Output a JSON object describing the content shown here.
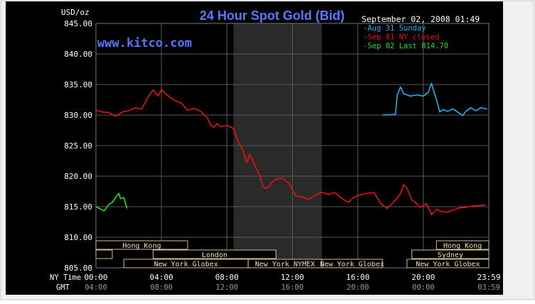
{
  "chart_data": {
    "type": "line",
    "title": "24 Hour Spot Gold (Bid)",
    "watermark": "www.kitco.com",
    "timestamp": "September 02, 2008 01:49",
    "ylabel": "USD/oz",
    "ylim": [
      805,
      845
    ],
    "y_ticks": [
      "805.00",
      "810.00",
      "815.00",
      "820.00",
      "825.00",
      "830.00",
      "835.00",
      "840.00",
      "845.00"
    ],
    "x_row_labels": {
      "ny": "NY Time",
      "gmt": "GMT"
    },
    "x_ticks_ny": [
      "00:00",
      "04:00",
      "08:00",
      "12:00",
      "16:00",
      "20:00",
      "23:59"
    ],
    "x_ticks_gmt": [
      "04:00",
      "08:00",
      "12:00",
      "16:00",
      "20:00",
      "00:00",
      "03:59"
    ],
    "x_unit": "hours (NY time)",
    "xlim": [
      0,
      24
    ],
    "grid": true,
    "legend_position": "top-right",
    "legend": [
      {
        "label": "Aug 31 Sunday",
        "color": "#19b3f0"
      },
      {
        "label": "Sep 01 NY closed",
        "color": "#ee1010"
      },
      {
        "label": "Sep 02 Last 814.70",
        "color": "#22dd22"
      }
    ],
    "shaded_session_hours": [
      8.4,
      13.8
    ],
    "sessions": [
      {
        "label": "Hong Kong",
        "start": 0.0,
        "end": 5.6,
        "row": 0
      },
      {
        "label": "Hong Kong",
        "start": 20.8,
        "end": 24.0,
        "row": 0
      },
      {
        "label": "",
        "start": 0.0,
        "end": 1.0,
        "row": 1
      },
      {
        "label": "London",
        "start": 3.5,
        "end": 11.0,
        "row": 1
      },
      {
        "label": "Sydney",
        "start": 19.3,
        "end": 24.0,
        "row": 1
      },
      {
        "label": "New York Globex",
        "start": 1.7,
        "end": 9.3,
        "row": 2
      },
      {
        "label": "New York NYMEX",
        "start": 9.3,
        "end": 13.8,
        "row": 2
      },
      {
        "label": "New York Globex",
        "start": 13.8,
        "end": 17.5,
        "row": 2
      },
      {
        "label": "New York Globex",
        "start": 19.0,
        "end": 24.0,
        "row": 2
      }
    ],
    "series": [
      {
        "name": "Aug 31 Sunday",
        "color": "#19b3f0",
        "x": [
          17.5,
          18.3,
          18.4,
          18.6,
          18.8,
          19.2,
          19.6,
          20.0,
          20.3,
          20.5,
          20.6,
          20.7,
          20.9,
          21.0,
          21.2,
          21.5,
          21.8,
          22.1,
          22.4,
          22.6,
          22.9,
          23.2,
          23.5,
          23.9
        ],
        "y": [
          830.0,
          830.1,
          833.2,
          834.6,
          833.5,
          833.1,
          833.3,
          833.1,
          833.7,
          835.2,
          834.2,
          833.4,
          831.6,
          830.5,
          830.9,
          830.6,
          831.0,
          830.5,
          829.9,
          830.6,
          831.2,
          830.7,
          831.2,
          831.0
        ]
      },
      {
        "name": "Sep 01 NY closed",
        "color": "#ee1010",
        "x": [
          0.0,
          0.4,
          0.8,
          1.2,
          1.6,
          2.0,
          2.4,
          2.8,
          3.2,
          3.5,
          3.8,
          4.0,
          4.2,
          4.5,
          4.8,
          5.2,
          5.6,
          6.0,
          6.4,
          6.8,
          7.0,
          7.2,
          7.4,
          7.6,
          8.0,
          8.4,
          8.7,
          9.0,
          9.2,
          9.4,
          9.6,
          9.8,
          10.0,
          10.2,
          10.4,
          10.6,
          10.8,
          11.0,
          11.4,
          11.8,
          12.2,
          12.6,
          13.0,
          13.4,
          13.8,
          14.2,
          14.6,
          15.0,
          15.4,
          15.8,
          16.2,
          16.6,
          17.0,
          17.4,
          17.8,
          18.2,
          18.6,
          18.8,
          19.0,
          19.3,
          19.6,
          19.8,
          20.0,
          20.2,
          20.5,
          20.8,
          21.0,
          21.4,
          21.8,
          22.2,
          22.6,
          23.0,
          23.4,
          23.8
        ],
        "y": [
          830.8,
          830.5,
          830.4,
          829.8,
          830.5,
          830.7,
          831.2,
          831.0,
          833.0,
          834.1,
          833.1,
          834.2,
          833.6,
          833.0,
          832.4,
          832.0,
          830.8,
          831.1,
          830.6,
          829.6,
          828.4,
          828.0,
          828.6,
          828.1,
          828.3,
          827.8,
          825.5,
          824.2,
          822.2,
          823.6,
          822.5,
          821.2,
          820.3,
          818.3,
          818.0,
          818.4,
          819.2,
          819.5,
          819.7,
          818.8,
          816.8,
          816.6,
          816.2,
          816.9,
          817.4,
          817.0,
          817.3,
          816.4,
          815.7,
          816.6,
          817.0,
          817.2,
          817.3,
          815.5,
          814.7,
          815.8,
          817.1,
          818.6,
          818.0,
          816.1,
          815.5,
          814.9,
          815.2,
          815.5,
          813.7,
          814.6,
          814.3,
          814.1,
          814.4,
          814.8,
          814.9,
          815.1,
          815.2,
          815.3
        ]
      },
      {
        "name": "Sep 02 Last 814.70",
        "color": "#22dd22",
        "x": [
          0.0,
          0.3,
          0.5,
          0.8,
          1.0,
          1.2,
          1.4,
          1.5,
          1.7,
          1.9
        ],
        "y": [
          815.0,
          814.6,
          814.3,
          815.4,
          815.7,
          816.5,
          817.2,
          816.3,
          816.5,
          814.7
        ]
      }
    ]
  }
}
